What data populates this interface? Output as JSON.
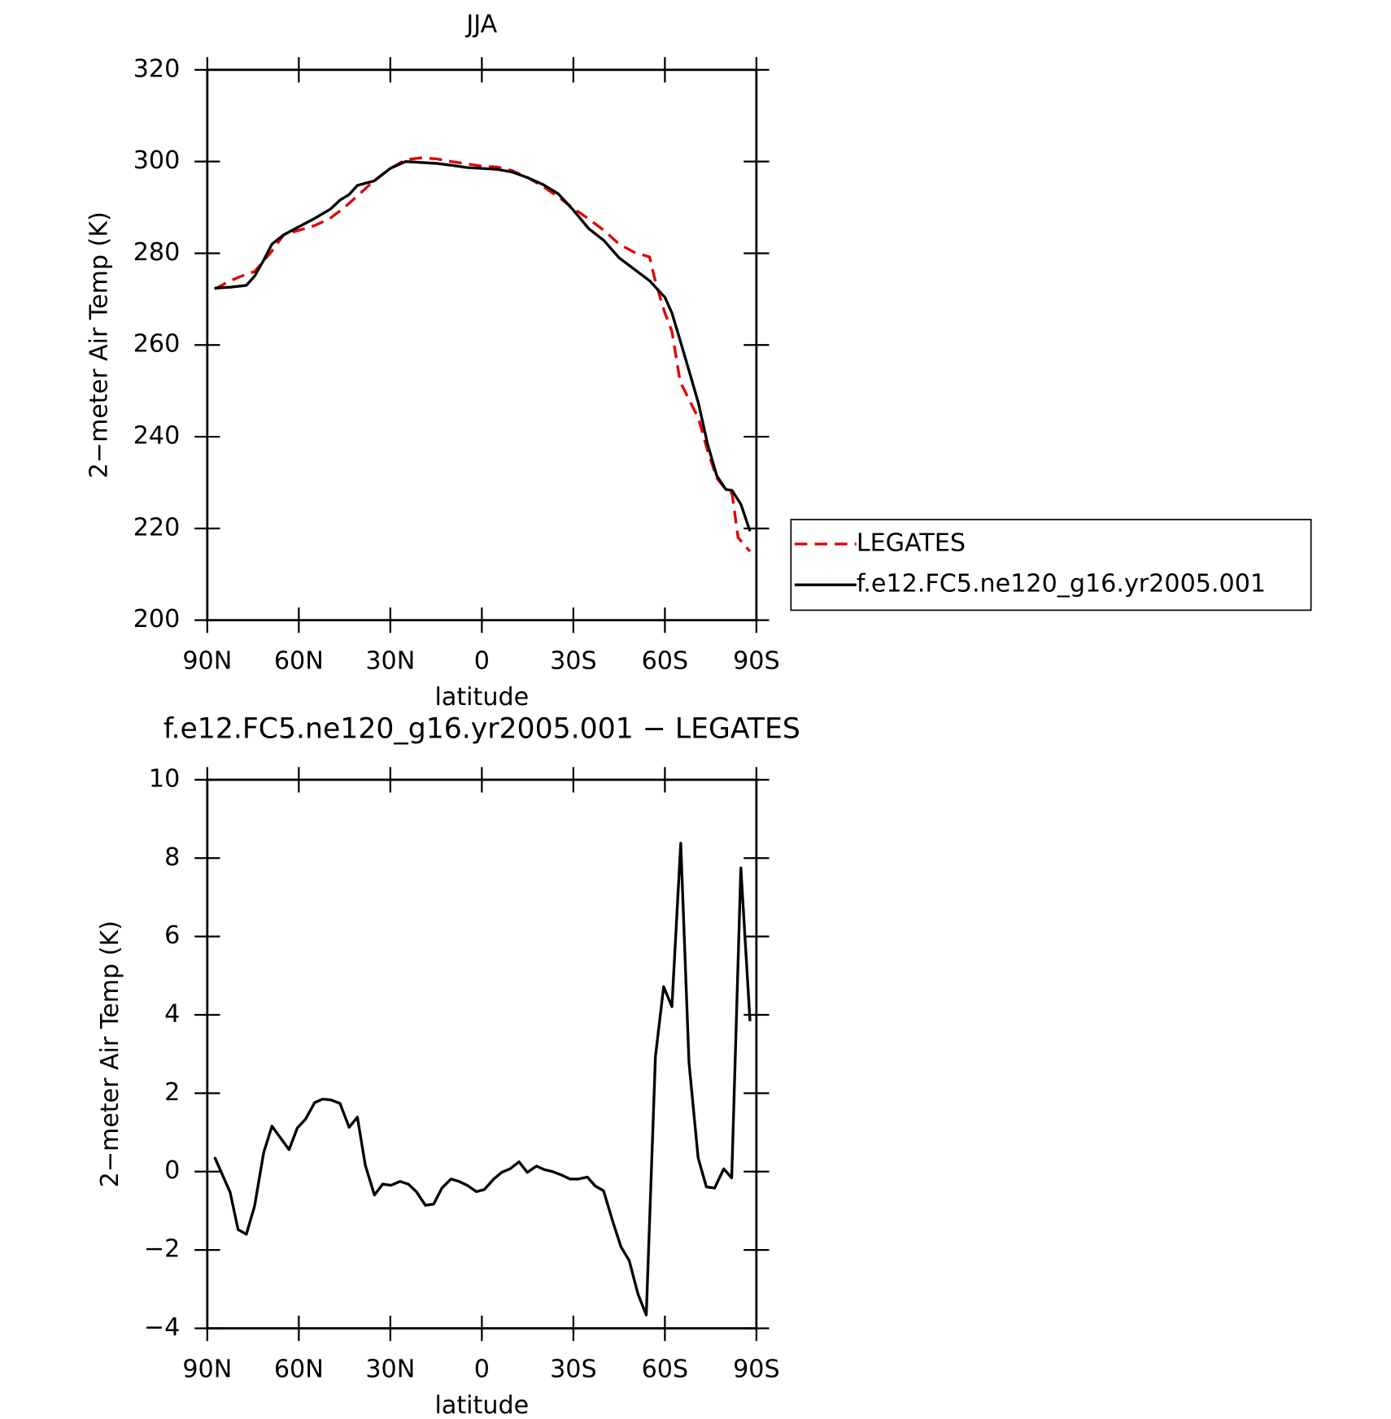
{
  "chart_data": [
    {
      "type": "line",
      "title": "JJA",
      "x_label": "latitude",
      "y_label": "2−meter Air Temp (K)",
      "xlim": [
        90,
        -90
      ],
      "xticks": [
        {
          "value": 90,
          "label": "90N"
        },
        {
          "value": 60,
          "label": "60N"
        },
        {
          "value": 30,
          "label": "30N"
        },
        0,
        {
          "value": -30,
          "label": "30S"
        },
        {
          "value": -60,
          "label": "60S"
        },
        {
          "value": -90,
          "label": "90S"
        }
      ],
      "ylim": [
        200,
        320
      ],
      "yticks": [
        200,
        220,
        240,
        260,
        280,
        300,
        320
      ],
      "legend": "right",
      "series": [
        {
          "name": "LEGATES",
          "color": "#e00000",
          "dash": true,
          "x": [
            87.6,
            82.5,
            77,
            74.5,
            68.8,
            65,
            60,
            55,
            50,
            45,
            40,
            35,
            30,
            25,
            20,
            15,
            10,
            5,
            0,
            -5,
            -10,
            -15,
            -20,
            -25,
            -30,
            -35,
            -40,
            -45,
            -50,
            -55,
            -57,
            -60,
            -62.3,
            -65,
            -68,
            -71,
            -74,
            -77,
            -80,
            -82,
            -84,
            -87.9
          ],
          "values": [
            272.2,
            274,
            275.5,
            276,
            280.5,
            284,
            285,
            286,
            287.5,
            290,
            293,
            296,
            298.5,
            300.4,
            300.8,
            300.6,
            300,
            299.5,
            299,
            298.8,
            298,
            296.5,
            294.6,
            292.3,
            289.8,
            287.5,
            285,
            282,
            280.2,
            279.2,
            273.5,
            267,
            263,
            252,
            248,
            244,
            237,
            231,
            228.5,
            227.7,
            218,
            215
          ]
        },
        {
          "name": "f.e12.FC5.ne120_g16.yr2005.001",
          "color": "#000000",
          "dash": false,
          "x": [
            87.6,
            82.5,
            77.2,
            74.5,
            71.5,
            68.8,
            65,
            60.5,
            54.8,
            49.5,
            46.5,
            43.5,
            40.8,
            35.2,
            30,
            25,
            20,
            15,
            10,
            5,
            0,
            -5,
            -10,
            -15,
            -20,
            -25,
            -30,
            -35,
            -40,
            -45,
            -50,
            -55,
            -60,
            -62.3,
            -65,
            -68,
            -71,
            -74,
            -77,
            -80,
            -82,
            -84.9,
            -87.9
          ],
          "values": [
            272.4,
            272.6,
            273,
            275,
            278.5,
            282,
            284,
            285.6,
            287.6,
            289.7,
            291.6,
            292.8,
            294.8,
            295.8,
            298.5,
            300,
            299.8,
            299.6,
            299.2,
            298.7,
            298.5,
            298.3,
            297.7,
            296.5,
            295,
            293,
            289.4,
            285.4,
            282.8,
            279,
            276.5,
            274,
            270.4,
            267,
            261,
            254.2,
            247.3,
            238.4,
            231.5,
            228.5,
            228.3,
            225.3,
            219.4
          ]
        }
      ]
    },
    {
      "type": "line",
      "title": "f.e12.FC5.ne120_g16.yr2005.001 − LEGATES",
      "x_label": "latitude",
      "y_label": "2−meter Air Temp (K)",
      "xlim": [
        90,
        -90
      ],
      "xticks": [
        {
          "value": 90,
          "label": "90N"
        },
        {
          "value": 60,
          "label": "60N"
        },
        {
          "value": 30,
          "label": "30N"
        },
        0,
        {
          "value": -30,
          "label": "30S"
        },
        {
          "value": -60,
          "label": "60S"
        },
        {
          "value": -90,
          "label": "90S"
        }
      ],
      "ylim": [
        -4,
        10
      ],
      "yticks": [
        {
          "value": -4,
          "label": "−4"
        },
        {
          "value": -2,
          "label": "−2"
        },
        0,
        2,
        4,
        6,
        8,
        10
      ],
      "series": [
        {
          "color": "#000000",
          "dash": false,
          "x": [
            87.6,
            82.5,
            79.9,
            77.2,
            74.5,
            71.5,
            68.8,
            63.2,
            60.5,
            57.8,
            54.8,
            52.2,
            49.5,
            46.5,
            43.5,
            40.8,
            38.2,
            35.2,
            32.5,
            29.8,
            26.8,
            24.1,
            21.5,
            18.5,
            15.8,
            13.1,
            10.1,
            7.5,
            4.8,
            1.8,
            -0.8,
            -3.9,
            -6.5,
            -9.2,
            -12.2,
            -14.9,
            -17.9,
            -20.5,
            -23.2,
            -26.2,
            -28.9,
            -31.6,
            -34.6,
            -37.2,
            -39.9,
            -42.9,
            -45.6,
            -48.3,
            -51.2,
            -53.9,
            -56.9,
            -59.6,
            -62.3,
            -65.2,
            -67.9,
            -70.9,
            -73.6,
            -76.3,
            -79.3,
            -81.9,
            -84.9,
            -87.9
          ],
          "values": [
            0.37,
            -0.53,
            -1.48,
            -1.6,
            -0.88,
            0.49,
            1.16,
            0.56,
            1.11,
            1.34,
            1.76,
            1.85,
            1.83,
            1.74,
            1.13,
            1.39,
            0.16,
            -0.6,
            -0.32,
            -0.35,
            -0.25,
            -0.32,
            -0.51,
            -0.86,
            -0.83,
            -0.42,
            -0.19,
            -0.25,
            -0.35,
            -0.51,
            -0.46,
            -0.19,
            -0.02,
            0.07,
            0.25,
            -0.02,
            0.14,
            0.05,
            0,
            -0.09,
            -0.19,
            -0.19,
            -0.14,
            -0.37,
            -0.49,
            -1.27,
            -1.92,
            -2.27,
            -3.13,
            -3.66,
            2.94,
            4.72,
            4.21,
            8.38,
            2.78,
            0.35,
            -0.39,
            -0.42,
            0.07,
            -0.16,
            7.75,
            3.84
          ]
        }
      ]
    }
  ]
}
